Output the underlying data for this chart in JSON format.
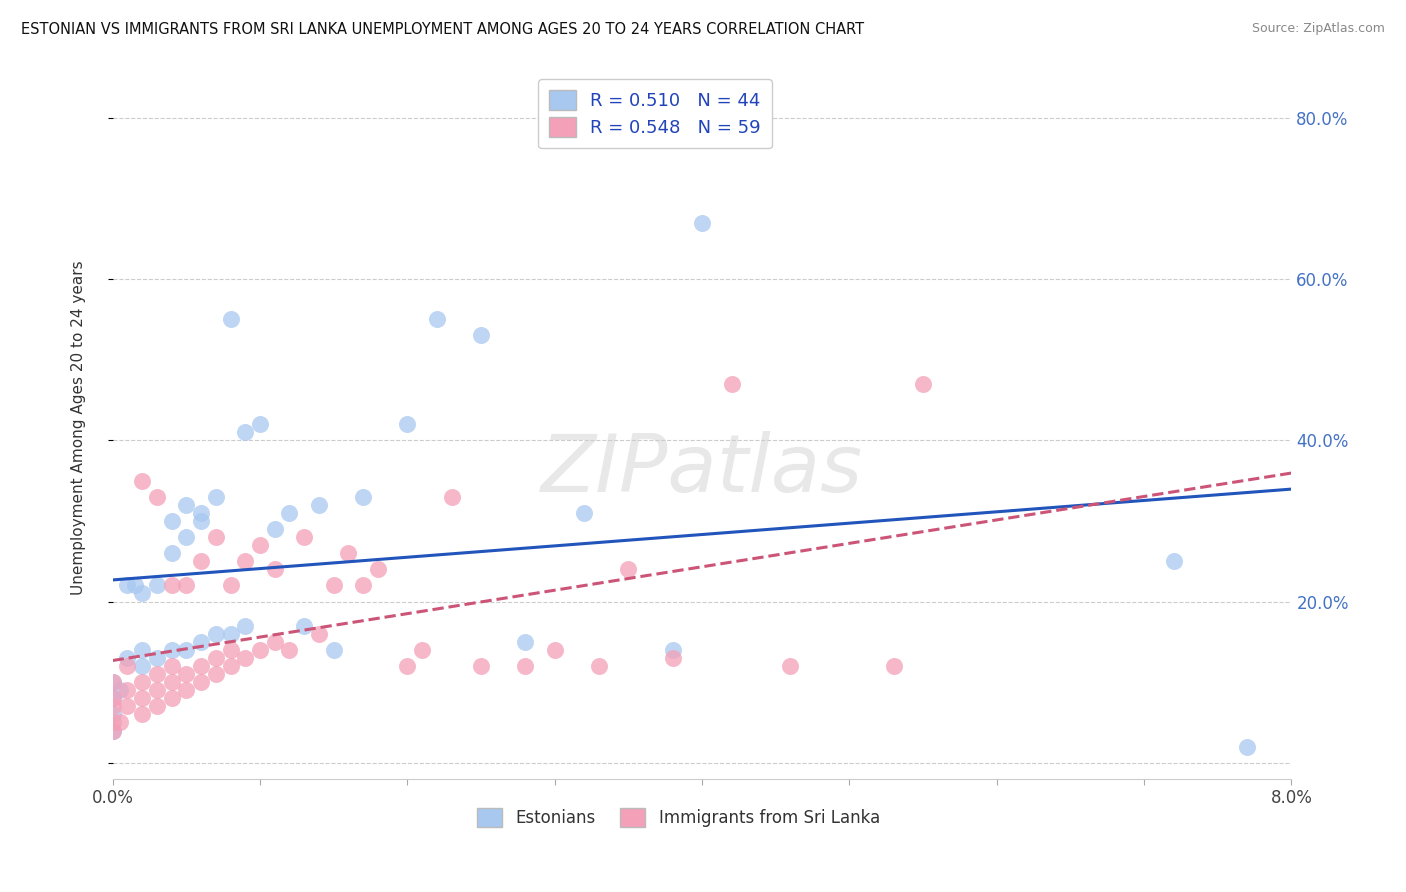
{
  "title": "ESTONIAN VS IMMIGRANTS FROM SRI LANKA UNEMPLOYMENT AMONG AGES 20 TO 24 YEARS CORRELATION CHART",
  "source": "Source: ZipAtlas.com",
  "ylabel_label": "Unemployment Among Ages 20 to 24 years",
  "xlim": [
    0.0,
    0.08
  ],
  "ylim": [
    -0.02,
    0.85
  ],
  "r1": 0.51,
  "r2": 0.548,
  "n1": 44,
  "n2": 59,
  "color_blue": "#A8C8F0",
  "color_pink": "#F4A0B8",
  "color_line_blue": "#2255BB",
  "color_line_pink": "#CC5577",
  "legend_series1": "Estonians",
  "legend_series2": "Immigrants from Sri Lanka",
  "estonians_x": [
    0.0,
    0.0,
    0.0,
    0.0,
    0.0005,
    0.001,
    0.001,
    0.0015,
    0.002,
    0.002,
    0.002,
    0.003,
    0.003,
    0.004,
    0.004,
    0.004,
    0.005,
    0.005,
    0.005,
    0.006,
    0.006,
    0.006,
    0.007,
    0.007,
    0.008,
    0.008,
    0.009,
    0.009,
    0.01,
    0.011,
    0.012,
    0.013,
    0.014,
    0.015,
    0.017,
    0.02,
    0.022,
    0.025,
    0.028,
    0.032,
    0.038,
    0.04,
    0.072,
    0.077
  ],
  "estonians_y": [
    0.04,
    0.06,
    0.08,
    0.1,
    0.09,
    0.13,
    0.22,
    0.22,
    0.12,
    0.14,
    0.21,
    0.13,
    0.22,
    0.14,
    0.26,
    0.3,
    0.14,
    0.28,
    0.32,
    0.15,
    0.3,
    0.31,
    0.16,
    0.33,
    0.16,
    0.55,
    0.17,
    0.41,
    0.42,
    0.29,
    0.31,
    0.17,
    0.32,
    0.14,
    0.33,
    0.42,
    0.55,
    0.53,
    0.15,
    0.31,
    0.14,
    0.67,
    0.25,
    0.02
  ],
  "srilanka_x": [
    0.0,
    0.0,
    0.0,
    0.0,
    0.0,
    0.0005,
    0.001,
    0.001,
    0.001,
    0.002,
    0.002,
    0.002,
    0.002,
    0.003,
    0.003,
    0.003,
    0.003,
    0.004,
    0.004,
    0.004,
    0.004,
    0.005,
    0.005,
    0.005,
    0.006,
    0.006,
    0.006,
    0.007,
    0.007,
    0.007,
    0.008,
    0.008,
    0.008,
    0.009,
    0.009,
    0.01,
    0.01,
    0.011,
    0.011,
    0.012,
    0.013,
    0.014,
    0.015,
    0.016,
    0.017,
    0.018,
    0.02,
    0.021,
    0.023,
    0.025,
    0.028,
    0.03,
    0.033,
    0.035,
    0.038,
    0.042,
    0.046,
    0.053,
    0.055
  ],
  "srilanka_y": [
    0.04,
    0.05,
    0.07,
    0.08,
    0.1,
    0.05,
    0.07,
    0.09,
    0.12,
    0.06,
    0.08,
    0.1,
    0.35,
    0.07,
    0.09,
    0.11,
    0.33,
    0.08,
    0.1,
    0.12,
    0.22,
    0.09,
    0.11,
    0.22,
    0.1,
    0.12,
    0.25,
    0.11,
    0.13,
    0.28,
    0.12,
    0.14,
    0.22,
    0.13,
    0.25,
    0.14,
    0.27,
    0.15,
    0.24,
    0.14,
    0.28,
    0.16,
    0.22,
    0.26,
    0.22,
    0.24,
    0.12,
    0.14,
    0.33,
    0.12,
    0.12,
    0.14,
    0.12,
    0.24,
    0.13,
    0.47,
    0.12,
    0.12,
    0.47
  ]
}
